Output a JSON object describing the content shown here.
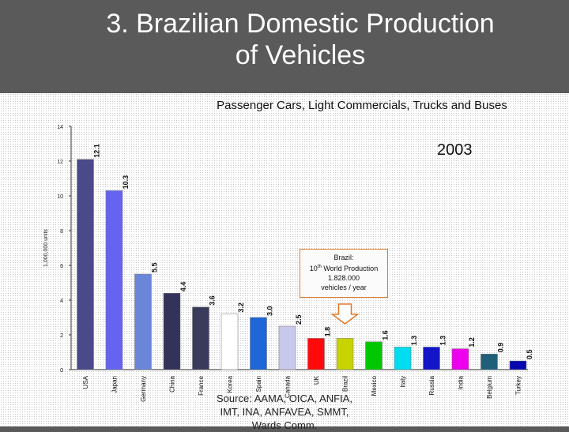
{
  "slide": {
    "title_line1": "3. Brazilian Domestic Production",
    "title_line2": "of Vehicles"
  },
  "chart_data": {
    "type": "bar",
    "title": "Passenger Cars, Light Commercials, Trucks and Buses",
    "ylabel": "1,000,000 units",
    "xlabel": "",
    "ylim": [
      0,
      14
    ],
    "yticks": [
      0,
      2,
      4,
      6,
      8,
      10,
      12,
      14
    ],
    "grid": "dotted",
    "year_label": "2003",
    "categories": [
      "USA",
      "Japan",
      "Germany",
      "China",
      "France",
      "Korea",
      "Spain",
      "Canada",
      "UK",
      "Brazil",
      "Mexico",
      "Italy",
      "Russia",
      "India",
      "Belgium",
      "Turkey"
    ],
    "values": [
      12.1,
      10.3,
      5.5,
      4.4,
      3.6,
      3.2,
      3.0,
      2.5,
      1.8,
      1.8,
      1.6,
      1.3,
      1.3,
      1.2,
      0.9,
      0.5
    ],
    "value_labels": [
      "12.1",
      "10.3",
      "5.5",
      "4.4",
      "3.6",
      "3.2",
      "3.0",
      "2.5",
      "1.8",
      "",
      "1.6",
      "1.3",
      "1.3",
      "1.2",
      "0.9",
      "0.5"
    ],
    "colors": [
      "#4a4a8a",
      "#6464f0",
      "#6a86d8",
      "#33335a",
      "#3a3a5a",
      "#ffffff",
      "#1f66d8",
      "#c8c8ec",
      "#ff0a0a",
      "#c8d400",
      "#00c800",
      "#00ddf0",
      "#1414c8",
      "#ee00ee",
      "#1f5f7a",
      "#0808b0"
    ],
    "annotation": {
      "line1": "Brazil:",
      "line2_num": "10",
      "line2_sup": "th",
      "line2_rest": " World Production",
      "line3": "1.828.000",
      "line4": "vehicles / year"
    },
    "source_lines": [
      "Source: AAMA, OICA, ANFIA,",
      "IMT, INA, ANFAVEA, SMMT,",
      "Wards Comm."
    ]
  }
}
